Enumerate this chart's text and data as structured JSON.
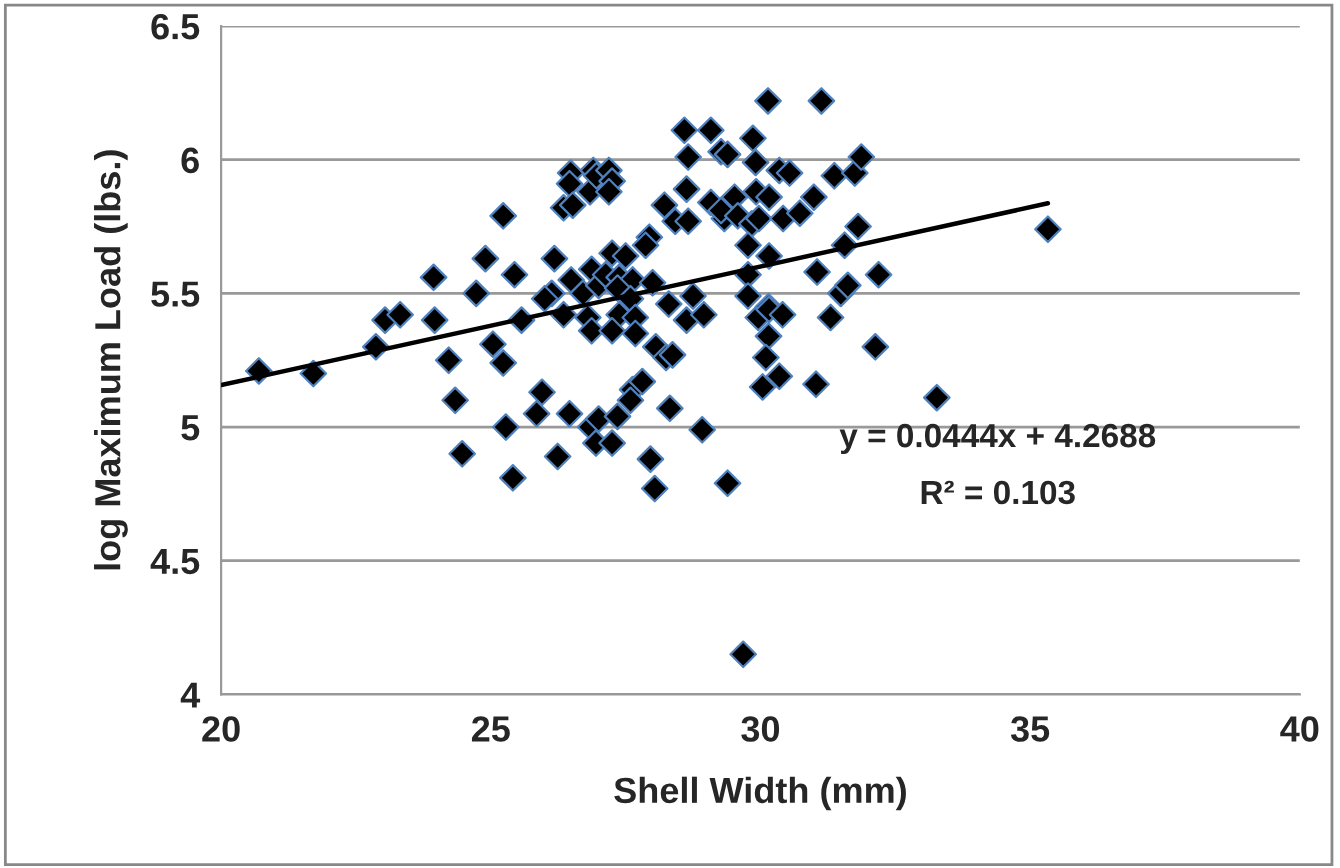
{
  "chart_data": {
    "type": "scatter",
    "xlabel": "Shell Width (mm)",
    "ylabel": "log Maximum Load (lbs.)",
    "xlim": [
      20,
      40
    ],
    "xticks": [
      20,
      25,
      30,
      35,
      40
    ],
    "ylim": [
      4,
      6.5
    ],
    "yticks": [
      4,
      4.5,
      5,
      5.5,
      6,
      6.5
    ],
    "grid": "y",
    "legend": false,
    "marker": "diamond",
    "series": [
      {
        "color": "#000000",
        "x": [
          20.7,
          21.71,
          22.87,
          23.04,
          23.32,
          23.94,
          23.96,
          24.22,
          24.34,
          24.47,
          24.73,
          24.9,
          25.04,
          25.23,
          25.23,
          25.28,
          25.41,
          25.44,
          25.57,
          25.95,
          25.85,
          26.13,
          26.18,
          26.0,
          26.24,
          26.35,
          26.46,
          26.48,
          26.46,
          26.35,
          26.52,
          26.49,
          26.71,
          26.8,
          26.87,
          26.84,
          26.9,
          26.96,
          26.87,
          26.85,
          26.95,
          27.0,
          27.0,
          27.19,
          27.25,
          27.19,
          27.25,
          27.5,
          27.13,
          27.38,
          27.63,
          27.35,
          27.59,
          27.38,
          27.68,
          27.25,
          27.68,
          27.63,
          27.81,
          27.59,
          27.35,
          27.25,
          27.94,
          27.87,
          28.0,
          28.06,
          28.25,
          28.37,
          28.32,
          27.96,
          28.04,
          28.22,
          28.42,
          28.59,
          28.66,
          28.63,
          28.66,
          28.3,
          28.63,
          28.75,
          28.95,
          28.92,
          29.08,
          29.27,
          29.39,
          29.08,
          29.33,
          29.27,
          29.52,
          29.58,
          29.84,
          29.39,
          29.77,
          29.77,
          29.77,
          29.96,
          30.15,
          30.15,
          30.1,
          30.04,
          30.35,
          30.16,
          30.41,
          29.86,
          29.92,
          29.91,
          30.16,
          29.97,
          30.35,
          30.54,
          30.42,
          30.73,
          30.16,
          30.14,
          31.13,
          30.99,
          31.37,
          31.75,
          31.87,
          31.81,
          31.56,
          31.05,
          31.49,
          31.62,
          31.3,
          32.19,
          32.13,
          31.03,
          33.27,
          29.68,
          35.33
        ],
        "values": [
          5.21,
          5.2,
          5.3,
          5.4,
          5.42,
          5.56,
          5.4,
          5.25,
          5.1,
          4.9,
          5.5,
          5.63,
          5.31,
          5.79,
          5.24,
          5.0,
          4.81,
          5.57,
          5.4,
          5.13,
          5.05,
          5.5,
          5.63,
          5.48,
          4.89,
          5.42,
          5.05,
          5.95,
          5.91,
          5.82,
          5.83,
          5.55,
          5.5,
          5.41,
          5.36,
          5.88,
          5.96,
          5.94,
          5.59,
          5.0,
          4.94,
          5.03,
          5.53,
          5.96,
          5.92,
          5.88,
          5.65,
          5.64,
          5.57,
          5.56,
          5.55,
          5.52,
          5.48,
          5.42,
          5.41,
          5.36,
          5.35,
          5.14,
          5.17,
          5.1,
          5.04,
          4.94,
          5.71,
          5.68,
          5.54,
          5.3,
          5.26,
          5.27,
          5.07,
          4.88,
          4.77,
          5.83,
          5.77,
          6.11,
          6.01,
          5.89,
          5.77,
          5.46,
          5.4,
          5.49,
          5.42,
          4.99,
          6.11,
          6.03,
          6.02,
          5.84,
          5.78,
          5.81,
          5.86,
          5.79,
          5.76,
          4.79,
          5.68,
          5.57,
          5.49,
          5.41,
          5.34,
          5.45,
          5.26,
          5.15,
          5.19,
          5.44,
          5.42,
          6.08,
          5.88,
          5.99,
          5.86,
          5.78,
          5.96,
          5.95,
          5.78,
          5.8,
          5.64,
          6.22,
          6.22,
          5.86,
          5.94,
          5.95,
          6.01,
          5.75,
          5.68,
          5.58,
          5.5,
          5.53,
          5.41,
          5.57,
          5.3,
          5.16,
          5.11,
          4.15,
          5.74
        ]
      },
      {
        "type": "line",
        "color": "#000000",
        "marker": "none",
        "line_style": "solid",
        "x": [
          20,
          35.33
        ],
        "values": [
          5.157,
          5.837
        ]
      }
    ],
    "annotations": [
      "y = 0.0444x + 4.2688",
      "R² = 0.103"
    ]
  }
}
